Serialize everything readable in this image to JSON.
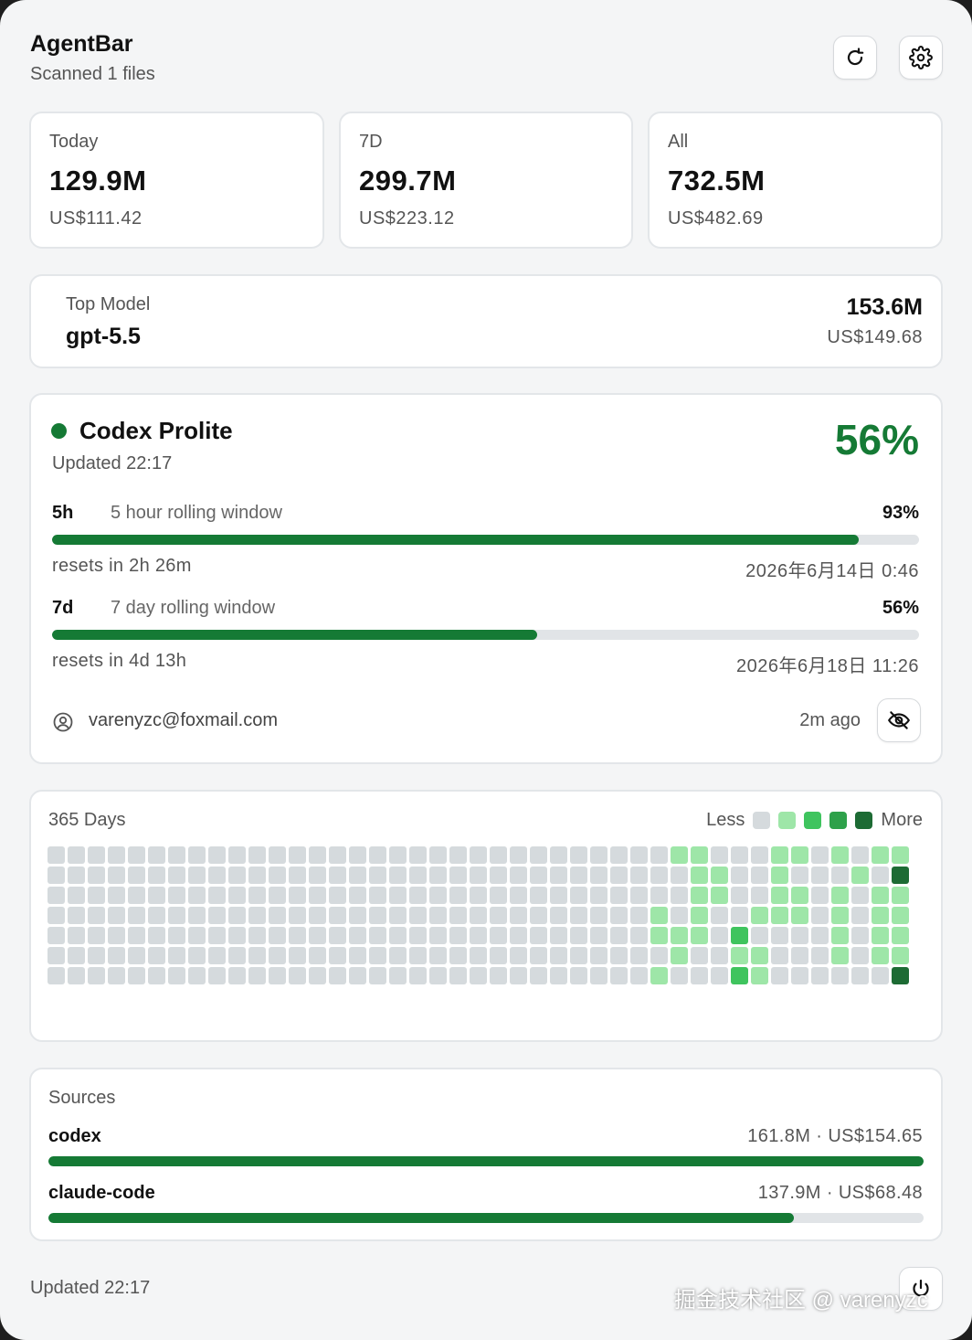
{
  "header": {
    "title": "AgentBar",
    "subtitle": "Scanned 1 files",
    "refresh_icon": "refresh-icon",
    "settings_icon": "gear-icon"
  },
  "stats": [
    {
      "label": "Today",
      "tokens": "129.9M",
      "cost": "US$111.42"
    },
    {
      "label": "7D",
      "tokens": "299.7M",
      "cost": "US$223.12"
    },
    {
      "label": "All",
      "tokens": "732.5M",
      "cost": "US$482.69"
    }
  ],
  "top_model": {
    "label": "Top Model",
    "name": "gpt-5.5",
    "tokens": "153.6M",
    "cost": "US$149.68"
  },
  "plan": {
    "name": "Codex Prolite",
    "updated": "Updated 22:17",
    "percent": "56%",
    "status_color": "#157a35",
    "windows": [
      {
        "key": "5h",
        "desc": "5 hour rolling window",
        "percent": "93%",
        "fill": 0.93,
        "reset": "resets in 2h 26m",
        "reset_time": "2026年6月14日 0:46"
      },
      {
        "key": "7d",
        "desc": "7 day rolling window",
        "percent": "56%",
        "fill": 0.56,
        "reset": "resets in 4d 13h",
        "reset_time": "2026年6月18日 11:26"
      }
    ],
    "account": {
      "email": "varenyzc@foxmail.com",
      "ago": "2m ago"
    }
  },
  "heatmap": {
    "title": "365 Days",
    "legend_less": "Less",
    "legend_more": "More",
    "colors": [
      "#d5dadd",
      "#9ee6a8",
      "#3fc45e",
      "#2ea14a",
      "#1d6b34"
    ],
    "rows": [
      "0000000000000000000000000000000110001101011",
      "0000000000000000000000000000000011001000104",
      "0000000000000000000000000000000011001101011",
      "0000000000000000000000000000001010011101011",
      "0000000000000000000000000000001110200001011",
      "0000000000000000000000000000000100110001011",
      "0000000000000000000000000000001000210000004"
    ]
  },
  "sources": {
    "title": "Sources",
    "items": [
      {
        "name": "codex",
        "meta": "161.8M · US$154.65",
        "fill": 1.0
      },
      {
        "name": "claude-code",
        "meta": "137.9M · US$68.48",
        "fill": 0.852
      }
    ]
  },
  "footer": {
    "updated": "Updated 22:17",
    "power_icon": "power-icon",
    "watermark": "掘金技术社区 @ varenyzc"
  }
}
